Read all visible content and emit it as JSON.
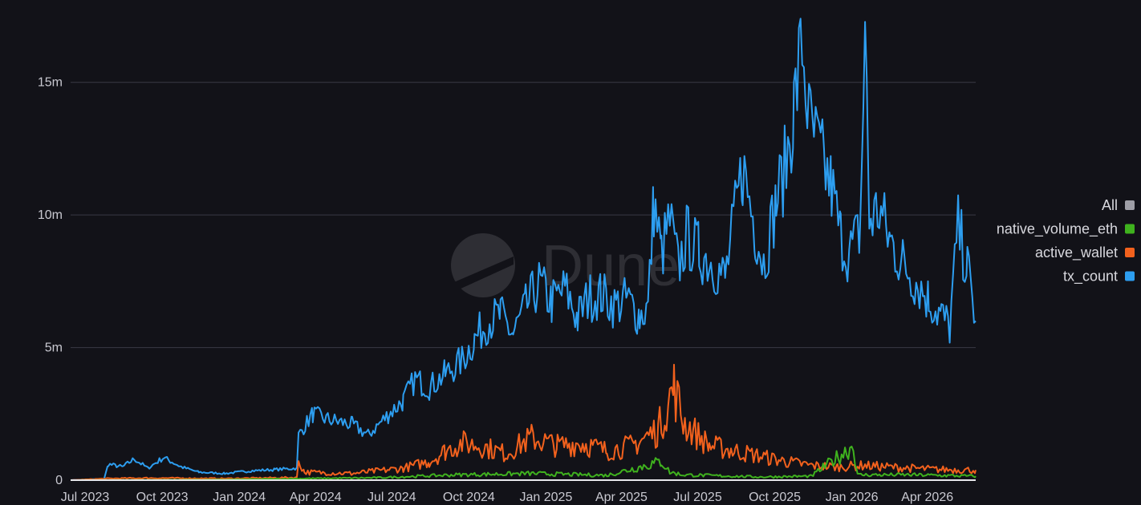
{
  "chart_data": {
    "type": "line",
    "title": "",
    "xlabel": "",
    "ylabel": "",
    "watermark": "Dune",
    "x_ticks": [
      "Jul 2023",
      "Oct 2023",
      "Jan 2024",
      "Apr 2024",
      "Jul 2024",
      "Oct 2024",
      "Jan 2025",
      "Apr 2025",
      "Jul 2025",
      "Oct 2025",
      "Jan 2026",
      "Apr 2026"
    ],
    "x_tick_dates": [
      "2023-07-01",
      "2023-10-01",
      "2024-01-01",
      "2024-04-01",
      "2024-07-01",
      "2024-10-01",
      "2025-01-01",
      "2025-04-01",
      "2025-07-01",
      "2025-10-01",
      "2026-01-01",
      "2026-04-01"
    ],
    "y_ticks": [
      "0",
      "5m",
      "10m",
      "15m"
    ],
    "y_tick_values": [
      0,
      5000000,
      10000000,
      15000000
    ],
    "ylim": [
      0,
      17500000
    ],
    "xlim": [
      "2023-07-01",
      "2026-06-15"
    ],
    "grid": "horizontal",
    "legend_position": "right",
    "legend": [
      {
        "label": "All",
        "color": "#9e9ea6"
      },
      {
        "label": "native_volume_eth",
        "color": "#3fb21e"
      },
      {
        "label": "active_wallet",
        "color": "#f2611d"
      },
      {
        "label": "tx_count",
        "color": "#2d9ef0"
      }
    ],
    "series": [
      {
        "name": "tx_count",
        "color": "#2d9ef0",
        "points": [
          [
            "2023-07-01",
            0
          ],
          [
            "2023-08-10",
            50000
          ],
          [
            "2023-08-15",
            600000
          ],
          [
            "2023-09-01",
            500000
          ],
          [
            "2023-09-15",
            800000
          ],
          [
            "2023-10-01",
            450000
          ],
          [
            "2023-10-20",
            850000
          ],
          [
            "2023-11-10",
            500000
          ],
          [
            "2023-12-01",
            300000
          ],
          [
            "2024-01-01",
            250000
          ],
          [
            "2024-02-01",
            350000
          ],
          [
            "2024-03-01",
            400000
          ],
          [
            "2024-03-27",
            450000
          ],
          [
            "2024-03-29",
            1700000
          ],
          [
            "2024-04-15",
            2500000
          ],
          [
            "2024-05-01",
            2300000
          ],
          [
            "2024-06-01",
            2100000
          ],
          [
            "2024-06-20",
            1700000
          ],
          [
            "2024-07-15",
            2500000
          ],
          [
            "2024-08-01",
            3000000
          ],
          [
            "2024-08-15",
            3800000
          ],
          [
            "2024-09-01",
            3500000
          ],
          [
            "2024-09-20",
            4000000
          ],
          [
            "2024-10-10",
            4500000
          ],
          [
            "2024-10-25",
            5300000
          ],
          [
            "2024-11-10",
            6000000
          ],
          [
            "2024-11-25",
            6200000
          ],
          [
            "2024-12-10",
            5500000
          ],
          [
            "2024-12-25",
            6500000
          ],
          [
            "2025-01-10",
            7400000
          ],
          [
            "2025-01-25",
            6700000
          ],
          [
            "2025-02-10",
            7200000
          ],
          [
            "2025-02-25",
            6100000
          ],
          [
            "2025-03-10",
            6900000
          ],
          [
            "2025-03-25",
            7000000
          ],
          [
            "2025-04-10",
            6600000
          ],
          [
            "2025-04-25",
            6800000
          ],
          [
            "2025-05-10",
            6200000
          ],
          [
            "2025-05-20",
            6500000
          ],
          [
            "2025-05-27",
            10500000
          ],
          [
            "2025-06-05",
            8500000
          ],
          [
            "2025-06-15",
            9800000
          ],
          [
            "2025-06-25",
            8000000
          ],
          [
            "2025-07-05",
            9200000
          ],
          [
            "2025-07-20",
            8600000
          ],
          [
            "2025-08-05",
            8200000
          ],
          [
            "2025-08-20",
            7600000
          ],
          [
            "2025-09-01",
            10000000
          ],
          [
            "2025-09-10",
            11800000
          ],
          [
            "2025-09-25",
            9500000
          ],
          [
            "2025-10-05",
            8200000
          ],
          [
            "2025-10-20",
            10500000
          ],
          [
            "2025-11-01",
            12000000
          ],
          [
            "2025-11-10",
            14000000
          ],
          [
            "2025-11-20",
            16500000
          ],
          [
            "2025-11-28",
            13500000
          ],
          [
            "2025-12-10",
            12400000
          ],
          [
            "2025-12-25",
            11000000
          ],
          [
            "2026-01-05",
            9200000
          ],
          [
            "2026-01-15",
            8500000
          ],
          [
            "2026-01-28",
            9400000
          ],
          [
            "2026-02-03",
            17100000
          ],
          [
            "2026-02-08",
            9800000
          ],
          [
            "2026-02-20",
            10200000
          ],
          [
            "2026-03-05",
            9000000
          ],
          [
            "2026-03-20",
            8200000
          ],
          [
            "2026-04-05",
            7500000
          ],
          [
            "2026-04-20",
            6800000
          ],
          [
            "2026-05-05",
            6200000
          ],
          [
            "2026-05-15",
            5800000
          ],
          [
            "2026-05-25",
            9500000
          ],
          [
            "2026-06-05",
            8000000
          ],
          [
            "2026-06-15",
            6000000
          ]
        ]
      },
      {
        "name": "active_wallet",
        "color": "#f2611d",
        "points": [
          [
            "2023-07-01",
            0
          ],
          [
            "2023-08-15",
            60000
          ],
          [
            "2023-10-01",
            80000
          ],
          [
            "2024-01-01",
            60000
          ],
          [
            "2024-03-27",
            100000
          ],
          [
            "2024-03-29",
            750000
          ],
          [
            "2024-04-05",
            300000
          ],
          [
            "2024-06-01",
            250000
          ],
          [
            "2024-08-01",
            450000
          ],
          [
            "2024-09-01",
            700000
          ],
          [
            "2024-09-20",
            1100000
          ],
          [
            "2024-10-10",
            1400000
          ],
          [
            "2024-11-01",
            1300000
          ],
          [
            "2024-12-01",
            1000000
          ],
          [
            "2025-01-01",
            1600000
          ],
          [
            "2025-02-01",
            1300000
          ],
          [
            "2025-03-01",
            1400000
          ],
          [
            "2025-04-01",
            1100000
          ],
          [
            "2025-05-01",
            1300000
          ],
          [
            "2025-06-01",
            1900000
          ],
          [
            "2025-06-20",
            3500000
          ],
          [
            "2025-07-01",
            2200000
          ],
          [
            "2025-08-01",
            1300000
          ],
          [
            "2025-09-01",
            1100000
          ],
          [
            "2025-10-01",
            900000
          ],
          [
            "2025-11-01",
            700000
          ],
          [
            "2025-12-01",
            550000
          ],
          [
            "2026-01-01",
            500000
          ],
          [
            "2026-02-01",
            550000
          ],
          [
            "2026-03-01",
            500000
          ],
          [
            "2026-04-01",
            450000
          ],
          [
            "2026-05-01",
            400000
          ],
          [
            "2026-06-15",
            380000
          ]
        ]
      },
      {
        "name": "native_volume_eth",
        "color": "#3fb21e",
        "points": [
          [
            "2023-07-01",
            0
          ],
          [
            "2024-01-01",
            20000
          ],
          [
            "2024-04-01",
            60000
          ],
          [
            "2024-07-01",
            90000
          ],
          [
            "2024-10-01",
            200000
          ],
          [
            "2025-01-01",
            250000
          ],
          [
            "2025-04-01",
            180000
          ],
          [
            "2025-06-05",
            700000
          ],
          [
            "2025-06-15",
            300000
          ],
          [
            "2025-07-01",
            200000
          ],
          [
            "2025-10-01",
            120000
          ],
          [
            "2025-12-01",
            150000
          ],
          [
            "2026-01-20",
            1300000
          ],
          [
            "2026-01-25",
            200000
          ],
          [
            "2026-04-01",
            200000
          ],
          [
            "2026-06-15",
            150000
          ]
        ]
      }
    ]
  }
}
